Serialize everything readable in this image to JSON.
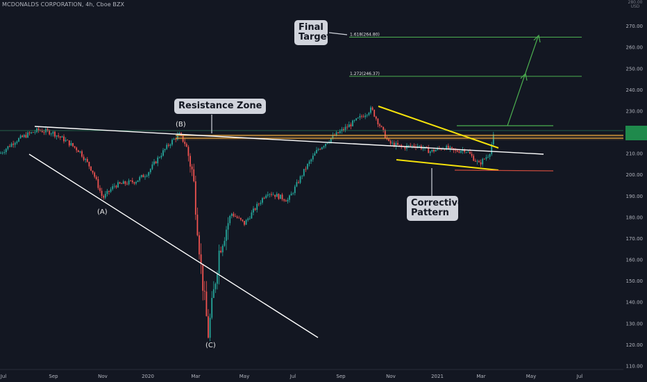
{
  "header": {
    "symbol": "MCDONALDS CORPORATION, 4h, Cboe BZX"
  },
  "currency": "USD",
  "colors": {
    "background": "#131722",
    "up": "#26a69a",
    "down": "#ef5350",
    "trendline": "#ffffff",
    "wedge": "#f5e20b",
    "resistance": "#e8a33c",
    "target": "#4caf50",
    "support_tail": "#c84a3c"
  },
  "chart_data": {
    "type": "candlestick",
    "y_axis": {
      "ticks": [
        110,
        120,
        130,
        140,
        150,
        160,
        170,
        180,
        190,
        200,
        210,
        220,
        230,
        240,
        250,
        260,
        270
      ],
      "range": [
        109,
        281
      ],
      "top_label": "280.00"
    },
    "x_axis": {
      "ticks": [
        "Jul",
        "Sep",
        "Nov",
        "2020",
        "Mar",
        "May",
        "Jul",
        "Sep",
        "Nov",
        "2021",
        "Mar",
        "May",
        "Jul"
      ]
    },
    "price_path": [
      [
        "Jul",
        210
      ],
      [
        "Jul-mid",
        216
      ],
      [
        "Aug",
        219
      ],
      [
        "Aug-mid",
        221
      ],
      [
        "Sep",
        220
      ],
      [
        "Sep-mid",
        216
      ],
      [
        "Oct",
        211
      ],
      [
        "Oct-mid",
        202
      ],
      [
        "Nov",
        189
      ],
      [
        "Nov-mid",
        195
      ],
      [
        "Dec",
        196
      ],
      [
        "Dec-mid",
        197
      ],
      [
        "2020",
        201
      ],
      [
        "Jan-mid",
        208
      ],
      [
        "Feb",
        215
      ],
      [
        "Feb-mid",
        219
      ],
      [
        "Mar",
        214
      ],
      [
        "Mar-early",
        200
      ],
      [
        "Mar-mid",
        155
      ],
      [
        "Mar-low",
        125
      ],
      [
        "Apr",
        165
      ],
      [
        "Apr-mid",
        182
      ],
      [
        "May",
        177
      ],
      [
        "May-mid",
        183
      ],
      [
        "Jun",
        192
      ],
      [
        "Jul",
        188
      ],
      [
        "Aug",
        203
      ],
      [
        "Aug-mid",
        212
      ],
      [
        "Sep",
        218
      ],
      [
        "Oct",
        226
      ],
      [
        "Oct-mid",
        231
      ],
      [
        "Nov",
        215
      ],
      [
        "Nov-mid",
        213
      ],
      [
        "Dec",
        214
      ],
      [
        "Dec-mid",
        211
      ],
      [
        "2021",
        213
      ],
      [
        "Jan-mid",
        211
      ],
      [
        "Feb",
        212
      ],
      [
        "Feb-mid",
        205
      ],
      [
        "Mar",
        210
      ],
      [
        "Mar-mid",
        221
      ]
    ],
    "levels": [
      {
        "label": "1.618(264.80)",
        "value": 264.8
      },
      {
        "label": "1.272(246.37)",
        "value": 246.37
      }
    ],
    "annotations": {
      "final_target": "Final Target",
      "resistance_zone": "Resistance Zone",
      "corrective_pattern": "Corrective Pattern",
      "wave_a": "(A)",
      "wave_b": "(B)",
      "wave_c": "(C)"
    },
    "grid": false,
    "legend": "none"
  }
}
